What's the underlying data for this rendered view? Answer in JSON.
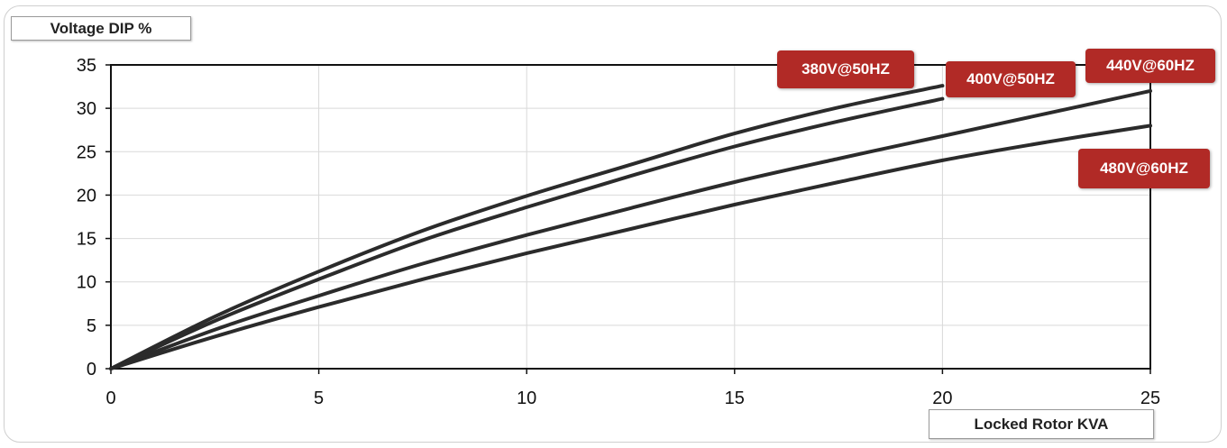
{
  "chart_data": {
    "type": "line",
    "title": "",
    "ylabel": "Voltage DIP %",
    "xlabel": "Locked Rotor KVA",
    "xlim": [
      0,
      25
    ],
    "ylim": [
      0,
      35
    ],
    "xticks": [
      0,
      5,
      10,
      15,
      20,
      25
    ],
    "yticks": [
      0,
      5,
      10,
      15,
      20,
      25,
      30,
      35
    ],
    "grid": true,
    "series": [
      {
        "name": "380V@50HZ",
        "x": [
          0,
          2.5,
          5,
          7.5,
          10,
          12.5,
          15,
          17.5,
          20
        ],
        "y": [
          0,
          6.0,
          11.2,
          15.9,
          19.9,
          23.5,
          27.1,
          30.1,
          32.6
        ]
      },
      {
        "name": "400V@50HZ",
        "x": [
          0,
          2.5,
          5,
          7.5,
          10,
          12.5,
          15,
          17.5,
          20
        ],
        "y": [
          0,
          5.5,
          10.3,
          14.8,
          18.6,
          22.2,
          25.6,
          28.5,
          31.1
        ]
      },
      {
        "name": "440V@60HZ",
        "x": [
          0,
          2.5,
          5,
          7.5,
          10,
          12.5,
          15,
          17.5,
          20,
          22.5,
          25
        ],
        "y": [
          0,
          4.5,
          8.4,
          12.1,
          15.4,
          18.5,
          21.5,
          24.2,
          26.8,
          29.4,
          32.0
        ]
      },
      {
        "name": "480V@60HZ",
        "x": [
          0,
          2.5,
          5,
          7.5,
          10,
          12.5,
          15,
          17.5,
          20,
          22.5,
          25
        ],
        "y": [
          0,
          3.7,
          7.1,
          10.3,
          13.3,
          16.1,
          18.9,
          21.5,
          24.0,
          26.1,
          28.0
        ]
      }
    ],
    "colors": {
      "line": "#2b2b2b",
      "tag_bg": "#b12a26",
      "tag_text": "#ffffff",
      "grid": "#d9d9d9",
      "axis": "#111111"
    }
  }
}
